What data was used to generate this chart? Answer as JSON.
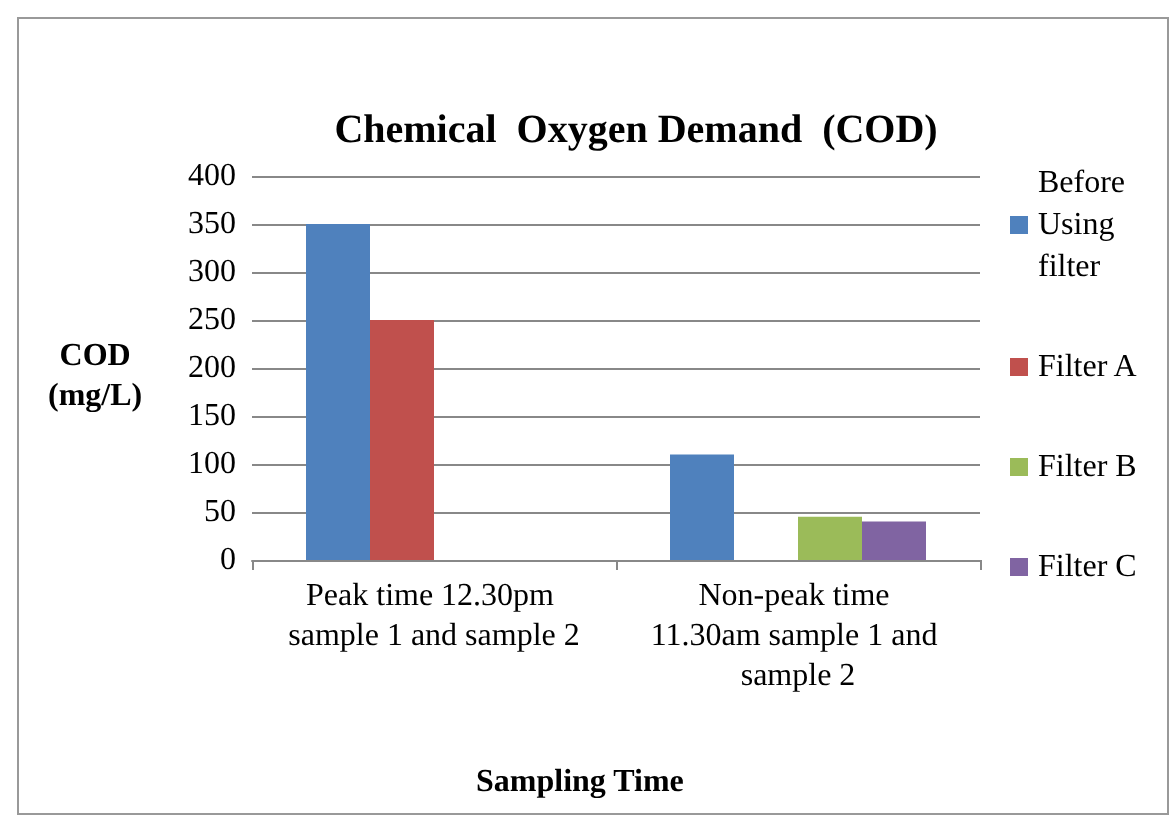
{
  "chart_data": {
    "type": "bar",
    "title": "Chemical  Oxygen Demand  (COD)",
    "xlabel": "Sampling Time",
    "ylabel": "COD\n(mg/L)",
    "categories": [
      "Peak time 12.30pm sample 1 and sample 2",
      "Non-peak time 11.30am sample 1 and sample 2"
    ],
    "series": [
      {
        "name": "Before Using filter",
        "color": "#4f81bd",
        "values": [
          350,
          110
        ]
      },
      {
        "name": "Filter A",
        "color": "#c0504d",
        "values": [
          250,
          null
        ]
      },
      {
        "name": "Filter B",
        "color": "#9bbb59",
        "values": [
          null,
          45
        ]
      },
      {
        "name": "Filter C",
        "color": "#8064a2",
        "values": [
          null,
          40
        ]
      }
    ],
    "ylim": [
      0,
      400
    ],
    "yticks": [
      0,
      50,
      100,
      150,
      200,
      250,
      300,
      350,
      400
    ],
    "grid": "y",
    "legend": "right"
  }
}
